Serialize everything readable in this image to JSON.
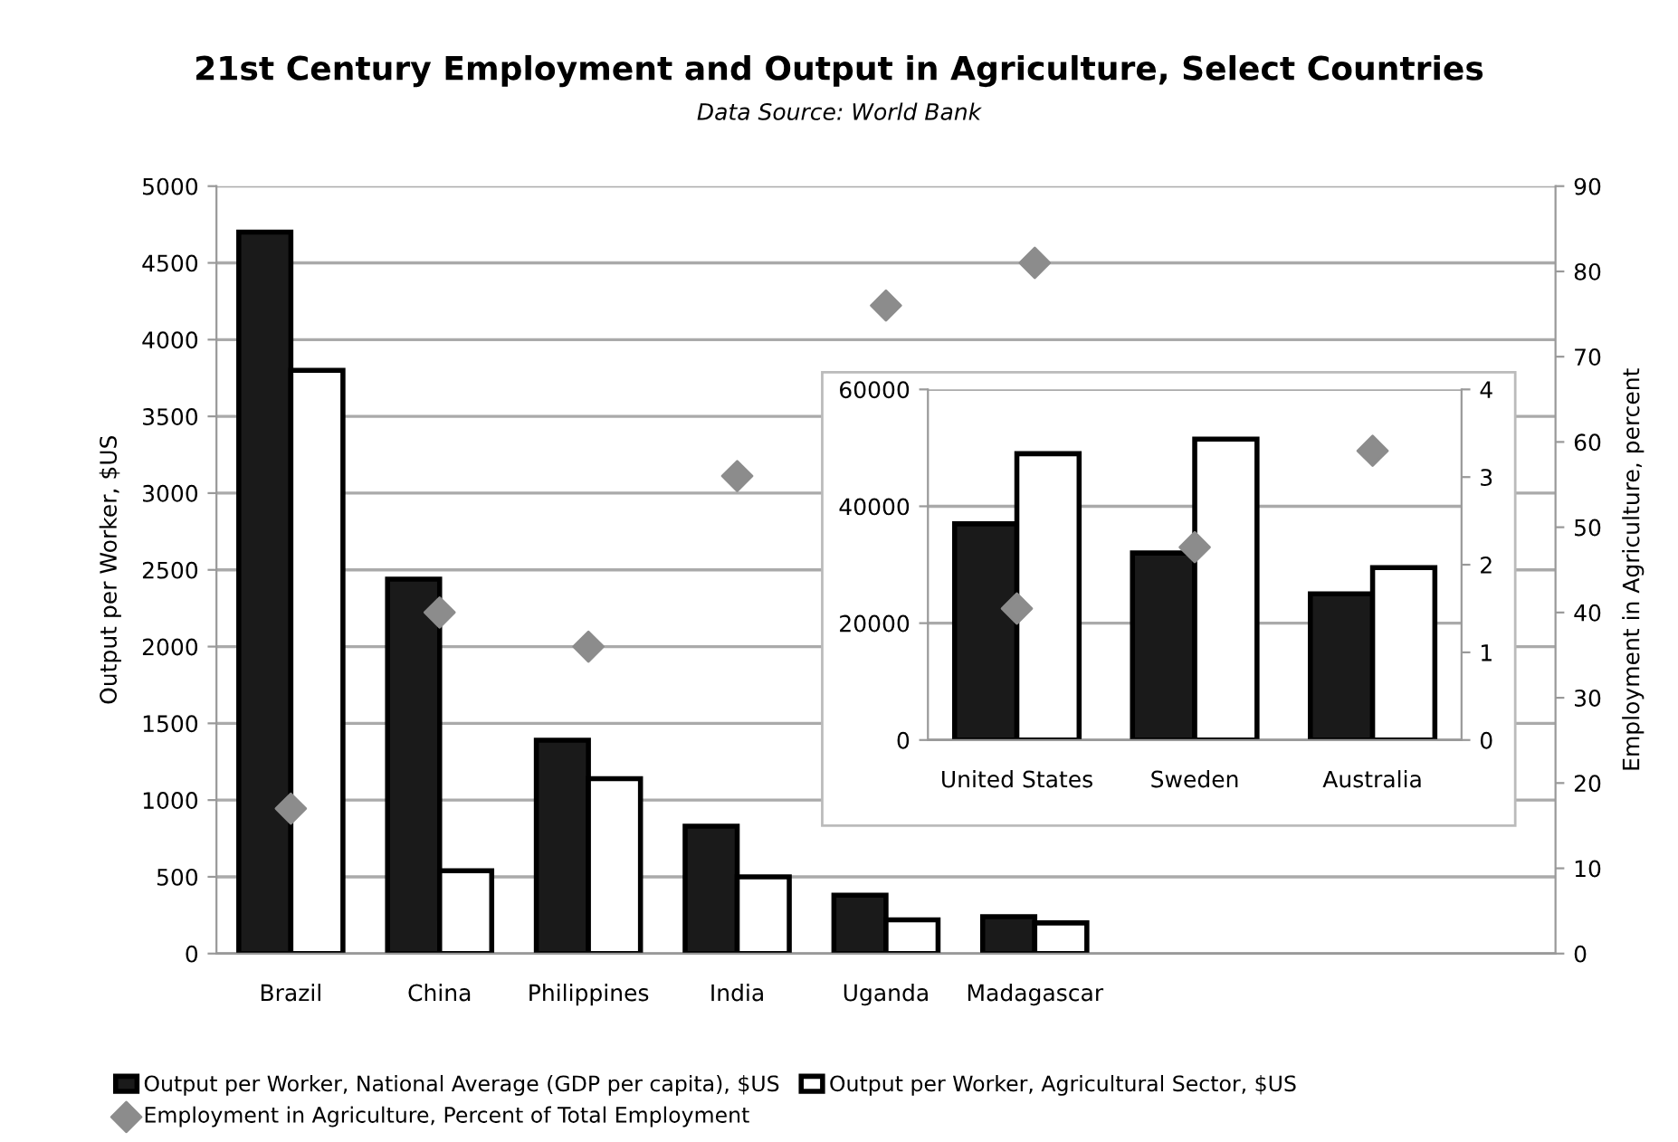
{
  "chart_data": [
    {
      "type": "bar",
      "title": "21st Century Employment and Output in Agriculture, Select Countries",
      "subtitle": "Data Source: World Bank",
      "ylabel": "Output per Worker, $US",
      "y2label": "Employment in Agriculture, percent",
      "categories": [
        "Brazil",
        "China",
        "Philippines",
        "India",
        "Uganda",
        "Madagascar",
        null,
        null,
        null
      ],
      "series": [
        {
          "name": "Output per Worker, National Average (GDP per capita), $US",
          "color": "#1a1a1a",
          "values": [
            4700,
            2440,
            1390,
            830,
            380,
            240,
            null,
            null,
            null
          ]
        },
        {
          "name": "Output per Worker, Agricultural Sector, $US",
          "color": "#ffffff",
          "values": [
            3800,
            540,
            1140,
            500,
            220,
            200,
            null,
            null,
            null
          ]
        },
        {
          "name": "Employment in Agriculture, Percent of Total Employment",
          "type": "scatter",
          "axis": "y2",
          "marker": "diamond",
          "color": "#8c8c8c",
          "values": [
            17,
            40,
            36,
            56,
            76,
            81,
            null,
            null,
            null
          ]
        }
      ],
      "ylim": [
        0,
        5000
      ],
      "yticks": [
        0,
        500,
        1000,
        1500,
        2000,
        2500,
        3000,
        3500,
        4000,
        4500,
        5000
      ],
      "y2lim": [
        0,
        90
      ],
      "y2ticks": [
        0,
        10,
        20,
        30,
        40,
        50,
        60,
        70,
        80,
        90
      ],
      "grid": "y",
      "legend": "bottom"
    },
    {
      "type": "bar",
      "categories": [
        "United States",
        "Sweden",
        "Australia"
      ],
      "series": [
        {
          "color": "#1a1a1a",
          "values": [
            37000,
            32000,
            25000
          ]
        },
        {
          "color": "#ffffff",
          "values": [
            49000,
            51500,
            29500
          ]
        },
        {
          "type": "scatter",
          "axis": "y2",
          "marker": "diamond",
          "color": "#8c8c8c",
          "values": [
            1.5,
            2.2,
            3.3
          ]
        }
      ],
      "ylim": [
        0,
        60000
      ],
      "yticks": [
        0,
        20000,
        40000,
        60000
      ],
      "y2lim": [
        0,
        4
      ],
      "y2ticks": [
        0,
        1,
        2,
        3,
        4
      ],
      "grid": "y"
    }
  ]
}
